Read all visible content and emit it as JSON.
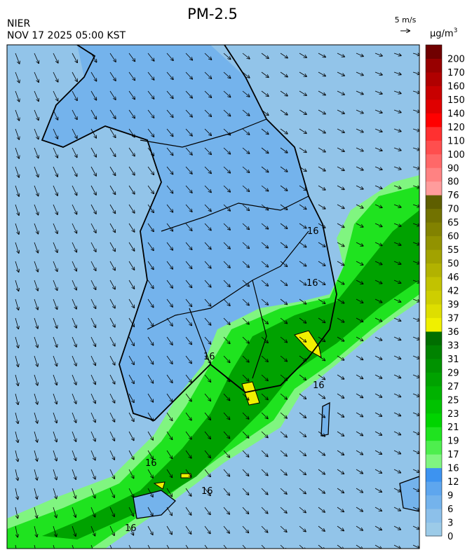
{
  "header": {
    "title": "PM-2.5",
    "agency": "NIER",
    "datetime": "NOV 17 2025 05:00 KST",
    "wind_scale": "5 m/s"
  },
  "colorbar": {
    "unit": "μg/m",
    "unit_superscript": "3",
    "levels": [
      0,
      3,
      6,
      9,
      12,
      16,
      17,
      19,
      21,
      23,
      25,
      27,
      29,
      31,
      33,
      36,
      37,
      39,
      42,
      46,
      50,
      55,
      60,
      65,
      70,
      76,
      80,
      90,
      100,
      110,
      120,
      140,
      150,
      160,
      170,
      200
    ],
    "colors": [
      "#9ccbe8",
      "#8cc0ea",
      "#74b3ec",
      "#5ea6ee",
      "#3d93f0",
      "#80f580",
      "#4eee4e",
      "#1fe31f",
      "#00d400",
      "#00c200",
      "#00b200",
      "#00a200",
      "#009200",
      "#008200",
      "#006e00",
      "#f0f000",
      "#dede00",
      "#cece00",
      "#c2c200",
      "#b2b200",
      "#a2a200",
      "#929200",
      "#828200",
      "#727200",
      "#5e5e00",
      "#ff9c9c",
      "#ff8282",
      "#ff6868",
      "#ff4e4e",
      "#ff3030",
      "#ff0000",
      "#e00000",
      "#c80000",
      "#b00000",
      "#980000",
      "#700000"
    ]
  },
  "contour_labels": [
    "16",
    "16",
    "16",
    "16",
    "16",
    "16",
    "16"
  ]
}
